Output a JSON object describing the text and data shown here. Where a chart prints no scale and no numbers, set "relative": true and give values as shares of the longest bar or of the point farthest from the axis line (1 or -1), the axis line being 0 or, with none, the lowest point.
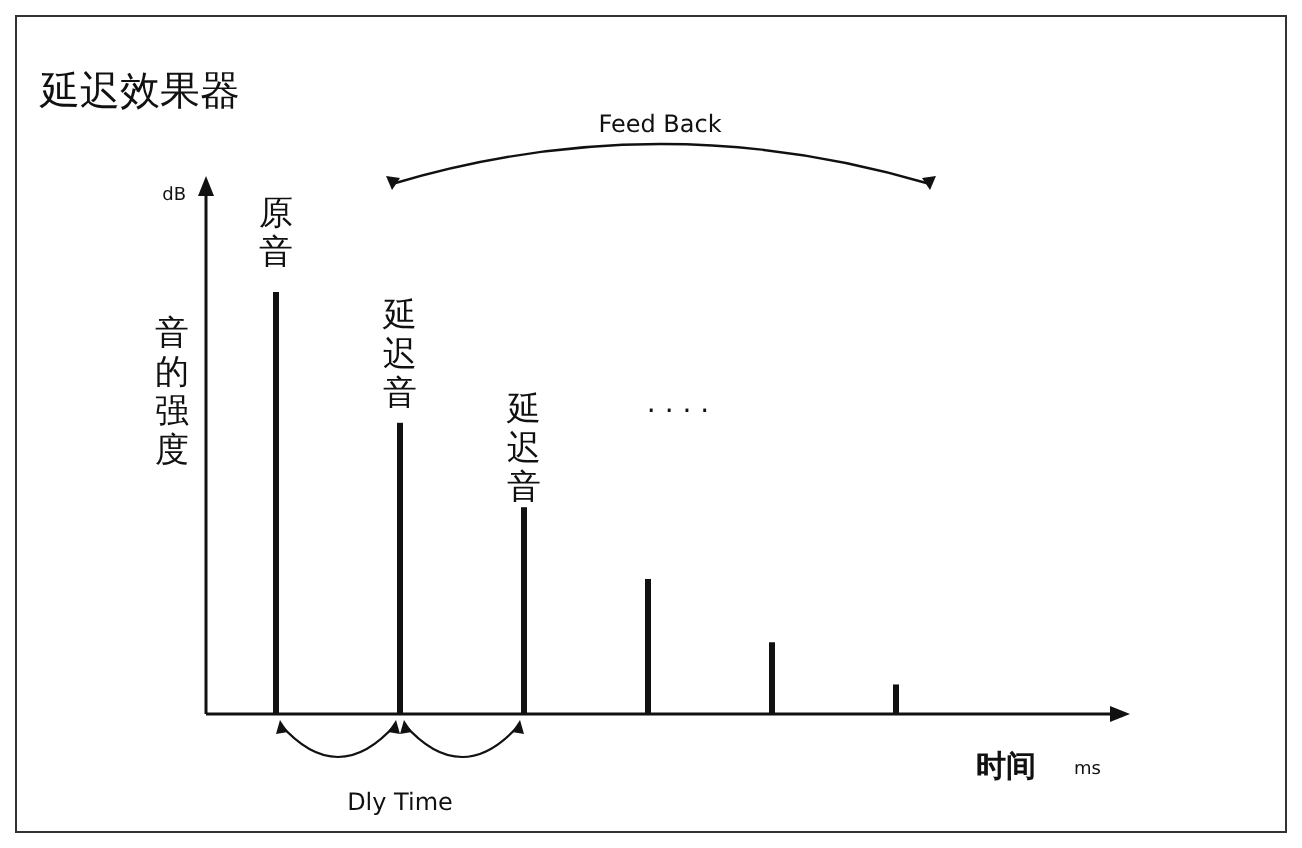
{
  "chart_data": {
    "type": "bar",
    "relative": true,
    "title": "延迟效果器",
    "xlabel": "时间",
    "ylabel": "音的强度",
    "categories": [
      null,
      null,
      null,
      null,
      null,
      null
    ],
    "values": [
      1,
      0.69,
      0.49,
      0.32,
      0.17,
      0.07
    ],
    "color": "#111111",
    "annotations": [
      "原音",
      "延迟音",
      "延迟音",
      "· · · ·",
      "Feed Back",
      "Dly Time",
      "dB",
      "ms"
    ]
  }
}
